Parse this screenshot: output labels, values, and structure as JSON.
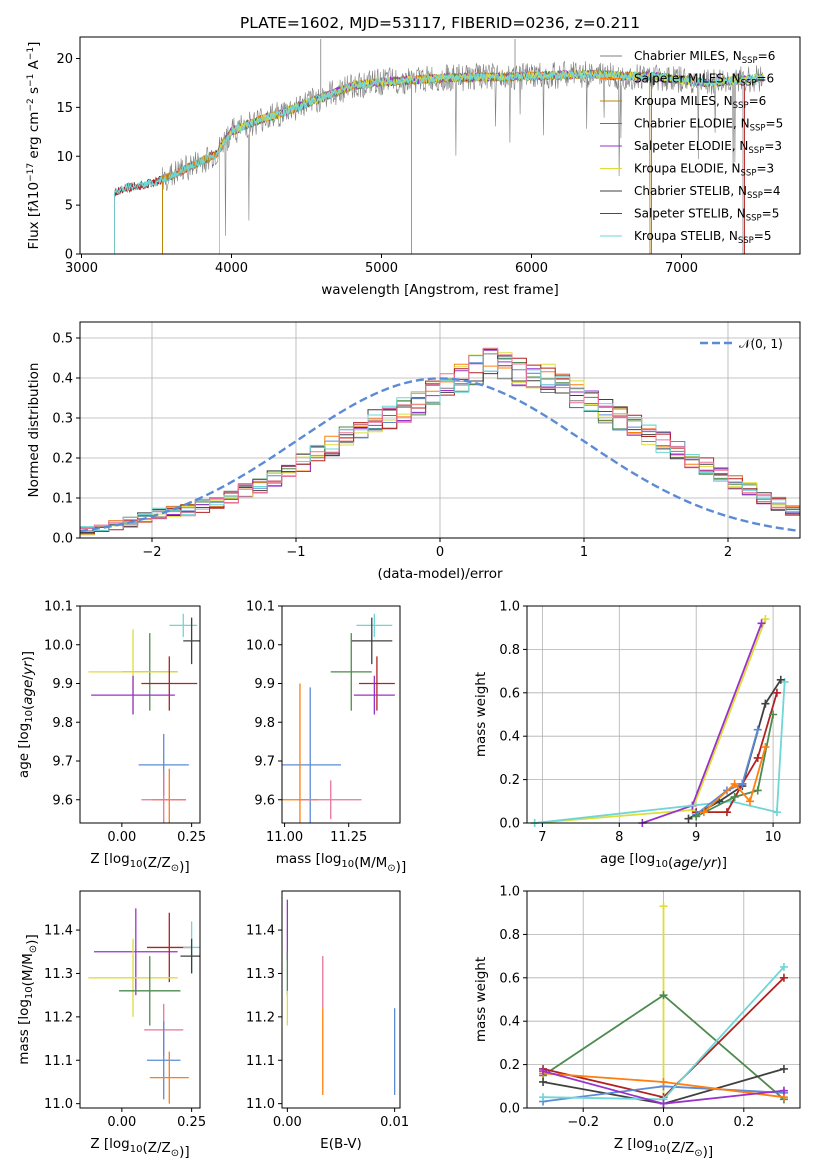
{
  "figure": {
    "title": "PLATE=1602, MJD=53117, FIBERID=0236, z=0.211",
    "colors": {
      "chabrier_miles": "#7f7f7f",
      "salpeter_miles": "#ff7f0e",
      "kroupa_miles": "#b8860b",
      "chabrier_elodie": "#4e8a4e",
      "salpeter_elodie": "#9932cc",
      "kroupa_elodie": "#dede3a",
      "chabrier_stelib": "#404040",
      "salpeter_stelib": "#b22222",
      "kroupa_stelib": "#6fd6d6",
      "normal": "#5b8bd6"
    }
  },
  "chart_data": [
    {
      "id": "spectrum",
      "type": "line",
      "title": "PLATE=1602, MJD=53117, FIBERID=0236, z=0.211",
      "xlabel": "wavelength [Angstrom, rest frame]",
      "ylabel_html": "Flux [f<tspan font-style='italic'>λ</tspan>10<tspan dy='-5' font-size='9'>−17</tspan><tspan dy='5'> erg cm</tspan><tspan dy='-5' font-size='9'>−2</tspan><tspan dy='5'> s</tspan><tspan dy='-5' font-size='9'>−1</tspan><tspan dy='5'> A</tspan><tspan dy='-5' font-size='9'>−1</tspan><tspan dy='5'>]</tspan>",
      "xlim": [
        2990,
        7790
      ],
      "ylim": [
        0,
        22.2
      ],
      "xticks": [
        3000,
        4000,
        5000,
        6000,
        7000
      ],
      "yticks": [
        0,
        5,
        10,
        15,
        20
      ],
      "legend_position": "upper right",
      "series": [
        {
          "name": "Chabrier MILES, N",
          "sub": "SSP",
          "n": "=6"
        },
        {
          "name": "Salpeter MILES, N",
          "sub": "SSP",
          "n": "=6"
        },
        {
          "name": "Kroupa MILES, N",
          "sub": "SSP",
          "n": "=6"
        },
        {
          "name": "Chabrier ELODIE, N",
          "sub": "SSP",
          "n": "=5"
        },
        {
          "name": "Salpeter ELODIE, N",
          "sub": "SSP",
          "n": "=3"
        },
        {
          "name": "Kroupa ELODIE, N",
          "sub": "SSP",
          "n": "=3"
        },
        {
          "name": "Chabrier STELIB, N",
          "sub": "SSP",
          "n": "=4"
        },
        {
          "name": "Salpeter STELIB, N",
          "sub": "SSP",
          "n": "=5"
        },
        {
          "name": "Kroupa STELIB, N",
          "sub": "SSP",
          "n": "=5"
        }
      ],
      "continuum_points": [
        [
          3210,
          0
        ],
        [
          3220,
          6.3
        ],
        [
          3300,
          6.8
        ],
        [
          3400,
          7.0
        ],
        [
          3500,
          7.4
        ],
        [
          3600,
          8.0
        ],
        [
          3700,
          8.8
        ],
        [
          3800,
          9.5
        ],
        [
          3900,
          10.2
        ],
        [
          3950,
          11.5
        ],
        [
          4000,
          12.5
        ],
        [
          4100,
          13.2
        ],
        [
          4200,
          13.8
        ],
        [
          4300,
          14.2
        ],
        [
          4400,
          14.8
        ],
        [
          4500,
          15.4
        ],
        [
          4600,
          16.0
        ],
        [
          4700,
          16.6
        ],
        [
          4800,
          17.2
        ],
        [
          4900,
          17.4
        ],
        [
          5000,
          17.6
        ],
        [
          5200,
          17.8
        ],
        [
          5400,
          18.0
        ],
        [
          5600,
          18.1
        ],
        [
          5800,
          18.1
        ],
        [
          6000,
          18.2
        ],
        [
          6200,
          18.3
        ],
        [
          6400,
          18.4
        ],
        [
          6600,
          18.2
        ],
        [
          6800,
          18.2
        ],
        [
          7000,
          17.8
        ],
        [
          7200,
          17.5
        ],
        [
          7400,
          17.8
        ],
        [
          7500,
          18.0
        ],
        [
          7550,
          18.0
        ]
      ],
      "model_starts": {
        "miles": 3540,
        "elodie": 3920,
        "stelib": 3220
      }
    },
    {
      "id": "residuals",
      "type": "histogram",
      "xlabel": "(data-model)/error",
      "ylabel": "Normed distribution",
      "xlim": [
        -2.5,
        2.5
      ],
      "ylim": [
        0,
        0.54
      ],
      "xticks": [
        -2,
        -1,
        0,
        1,
        2
      ],
      "xticklabels": [
        "−2",
        "−1",
        "0",
        "1",
        "2"
      ],
      "yticks": [
        0.0,
        0.1,
        0.2,
        0.3,
        0.4,
        0.5
      ],
      "yticklabels": [
        "0.0",
        "0.1",
        "0.2",
        "0.3",
        "0.4",
        "0.5"
      ],
      "grid": true,
      "legend_position": "upper right",
      "normal_label": "𝒩(0, 1)",
      "bin_width": 0.1,
      "bin_start": -2.5,
      "base_values": [
        0.018,
        0.024,
        0.032,
        0.04,
        0.05,
        0.06,
        0.065,
        0.07,
        0.08,
        0.09,
        0.1,
        0.12,
        0.13,
        0.15,
        0.17,
        0.19,
        0.21,
        0.23,
        0.25,
        0.27,
        0.29,
        0.3,
        0.32,
        0.34,
        0.36,
        0.38,
        0.4,
        0.42,
        0.45,
        0.43,
        0.42,
        0.41,
        0.4,
        0.38,
        0.36,
        0.34,
        0.32,
        0.3,
        0.28,
        0.26,
        0.24,
        0.22,
        0.2,
        0.18,
        0.16,
        0.14,
        0.12,
        0.1,
        0.085,
        0.07,
        0.06,
        0.05,
        0.04,
        0.033,
        0.027
      ]
    },
    {
      "id": "age-vs-Z",
      "type": "scatter",
      "xlabel": "Z [log<sub>10</sub>(Z/Z<sub>⊙</sub>)]",
      "ylabel": "age  [log<sub>10</sub>(age/yr)]",
      "xlim": [
        -0.15,
        0.28
      ],
      "ylim": [
        9.54,
        10.1
      ],
      "xticks": [
        0.0,
        0.25
      ],
      "xticklabels": [
        "0.00",
        "0.25"
      ],
      "yticks": [
        9.6,
        9.7,
        9.8,
        9.9,
        10.0,
        10.1
      ],
      "yticklabels": [
        "9.6",
        "9.7",
        "9.8",
        "9.9",
        "10.0",
        "10.1"
      ],
      "points": [
        {
          "c": "kroupa_stelib",
          "x": 0.22,
          "y": 10.05,
          "xe": 0.05,
          "ye": 0.03
        },
        {
          "c": "chabrier_stelib",
          "x": 0.25,
          "y": 10.01,
          "xe": 0.03,
          "ye": 0.06
        },
        {
          "c": "chabrier_elodie",
          "x": 0.1,
          "y": 9.93,
          "xe": 0.1,
          "ye": 0.1
        },
        {
          "c": "kroupa_elodie",
          "x": 0.04,
          "y": 9.93,
          "xe": 0.16,
          "ye": 0.11
        },
        {
          "c": "salpeter_stelib",
          "x": 0.17,
          "y": 9.9,
          "xe": 0.1,
          "ye": 0.07
        },
        {
          "c": "salpeter_elodie",
          "x": 0.04,
          "y": 9.87,
          "xe": 0.15,
          "ye": 0.05
        },
        {
          "c": "normal",
          "x": 0.15,
          "y": 9.69,
          "xe": 0.09,
          "ye": 0.08
        },
        {
          "c": "salpeter_miles",
          "x": 0.17,
          "y": 9.6,
          "xe": 0.06,
          "ye": 0.08
        },
        {
          "c": "pink",
          "x": 0.15,
          "y": 9.6,
          "xe": 0.08,
          "ye": 0.07
        }
      ]
    },
    {
      "id": "age-vs-mass",
      "type": "scatter",
      "xlabel": "mass [log<sub>10</sub>(M/M<sub>⊙</sub>)]",
      "xlim": [
        10.99,
        11.45
      ],
      "ylim": [
        9.54,
        10.1
      ],
      "xticks": [
        11.0,
        11.25
      ],
      "xticklabels": [
        "11.00",
        "11.25"
      ],
      "yticks": [
        9.6,
        9.7,
        9.8,
        9.9,
        10.0,
        10.1
      ],
      "yticklabels": [
        "9.6",
        "9.7",
        "9.8",
        "9.9",
        "10.0",
        "10.1"
      ],
      "points": [
        {
          "c": "kroupa_stelib",
          "x": 11.35,
          "y": 10.05,
          "xe": 0.07,
          "ye": 0.03
        },
        {
          "c": "chabrier_stelib",
          "x": 11.34,
          "y": 10.01,
          "xe": 0.08,
          "ye": 0.06
        },
        {
          "c": "chabrier_elodie",
          "x": 11.26,
          "y": 9.93,
          "xe": 0.08,
          "ye": 0.1
        },
        {
          "c": "salpeter_stelib",
          "x": 11.36,
          "y": 9.9,
          "xe": 0.07,
          "ye": 0.07
        },
        {
          "c": "salpeter_elodie",
          "x": 11.35,
          "y": 9.87,
          "xe": 0.08,
          "ye": 0.05
        },
        {
          "c": "normal",
          "x": 11.1,
          "y": 9.69,
          "xe": 0.12,
          "ye": 0.2
        },
        {
          "c": "salpeter_miles",
          "x": 11.06,
          "y": 9.6,
          "xe": 0.07,
          "ye": 0.3
        },
        {
          "c": "pink",
          "x": 11.18,
          "y": 9.6,
          "xe": 0.12,
          "ye": 0.05
        }
      ]
    },
    {
      "id": "mass-weight-vs-age",
      "type": "line",
      "xlabel": "age  [log<sub>10</sub>(age/yr)]",
      "ylabel": "mass weight",
      "xlim": [
        6.8,
        10.35
      ],
      "ylim": [
        0,
        1.0
      ],
      "xticks": [
        7,
        8,
        9,
        10
      ],
      "yticks": [
        0.0,
        0.2,
        0.4,
        0.6,
        0.8,
        1.0
      ],
      "yticklabels": [
        "0.0",
        "0.2",
        "0.4",
        "0.6",
        "0.8",
        "1.0"
      ],
      "grid": true,
      "series": [
        {
          "c": "kroupa_elodie",
          "x": [
            6.9,
            8.95,
            9.9
          ],
          "y": [
            0.0,
            0.06,
            0.94
          ]
        },
        {
          "c": "salpeter_elodie",
          "x": [
            8.3,
            8.95,
            9.85
          ],
          "y": [
            0.0,
            0.08,
            0.92
          ]
        },
        {
          "c": "kroupa_stelib",
          "x": [
            6.9,
            9.45,
            10.05,
            10.15
          ],
          "y": [
            0.0,
            0.1,
            0.05,
            0.65
          ]
        },
        {
          "c": "chabrier_stelib",
          "x": [
            8.9,
            9.3,
            9.6,
            9.9,
            10.1
          ],
          "y": [
            0.02,
            0.1,
            0.17,
            0.55,
            0.66
          ]
        },
        {
          "c": "salpeter_stelib",
          "x": [
            9.0,
            9.4,
            9.6,
            9.8,
            10.05
          ],
          "y": [
            0.05,
            0.05,
            0.18,
            0.3,
            0.6
          ]
        },
        {
          "c": "normal",
          "x": [
            9.0,
            9.4,
            9.6,
            9.8
          ],
          "y": [
            0.04,
            0.15,
            0.18,
            0.43
          ]
        },
        {
          "c": "chabrier_elodie",
          "x": [
            9.0,
            9.5,
            9.8,
            10.0
          ],
          "y": [
            0.03,
            0.12,
            0.15,
            0.5
          ]
        },
        {
          "c": "salpeter_miles",
          "x": [
            9.1,
            9.5,
            9.7,
            9.9
          ],
          "y": [
            0.05,
            0.18,
            0.1,
            0.35
          ]
        }
      ]
    },
    {
      "id": "mass-vs-Z",
      "type": "scatter",
      "xlabel": "Z [log<sub>10</sub>(Z/Z<sub>⊙</sub>)]",
      "ylabel": "mass [log<sub>10</sub>(M/M<sub>⊙</sub>)]",
      "xlim": [
        -0.15,
        0.28
      ],
      "ylim": [
        10.99,
        11.49
      ],
      "xticks": [
        0.0,
        0.25
      ],
      "xticklabels": [
        "0.00",
        "0.25"
      ],
      "yticks": [
        11.0,
        11.1,
        11.2,
        11.3,
        11.4
      ],
      "yticklabels": [
        "11.0",
        "11.1",
        "11.2",
        "11.3",
        "11.4"
      ],
      "points": [
        {
          "c": "salpeter_elodie",
          "x": 0.05,
          "y": 11.35,
          "xe": 0.15,
          "ye": 0.1
        },
        {
          "c": "salpeter_stelib",
          "x": 0.17,
          "y": 11.36,
          "xe": 0.08,
          "ye": 0.08
        },
        {
          "c": "kroupa_stelib",
          "x": 0.25,
          "y": 11.36,
          "xe": 0.03,
          "ye": 0.06
        },
        {
          "c": "chabrier_stelib",
          "x": 0.25,
          "y": 11.34,
          "xe": 0.04,
          "ye": 0.04
        },
        {
          "c": "kroupa_elodie",
          "x": 0.04,
          "y": 11.29,
          "xe": 0.16,
          "ye": 0.09
        },
        {
          "c": "chabrier_elodie",
          "x": 0.1,
          "y": 11.26,
          "xe": 0.11,
          "ye": 0.08
        },
        {
          "c": "pink",
          "x": 0.15,
          "y": 11.17,
          "xe": 0.07,
          "ye": 0.06
        },
        {
          "c": "normal",
          "x": 0.15,
          "y": 11.1,
          "xe": 0.06,
          "ye": 0.09
        },
        {
          "c": "salpeter_miles",
          "x": 0.17,
          "y": 11.06,
          "xe": 0.07,
          "ye": 0.06
        }
      ]
    },
    {
      "id": "mass-vs-EBV",
      "type": "scatter",
      "xlabel": "E(B-V)",
      "xlim": [
        -0.0005,
        0.0105
      ],
      "ylim": [
        10.99,
        11.49
      ],
      "xticks": [
        0.0,
        0.01
      ],
      "xticklabels": [
        "0.00",
        "0.01"
      ],
      "yticks": [
        11.0,
        11.1,
        11.2,
        11.3,
        11.4
      ],
      "yticklabels": [
        "11.0",
        "11.1",
        "11.2",
        "11.3",
        "11.4"
      ],
      "points": [
        {
          "c": "salpeter_elodie",
          "x": 0.0,
          "y": 11.4,
          "xe": 0,
          "ye": 0.07
        },
        {
          "c": "chabrier_elodie",
          "x": 0.0,
          "y": 11.3,
          "xe": 0,
          "ye": 0.05
        },
        {
          "c": "kroupa_elodie",
          "x": 0.0,
          "y": 11.22,
          "xe": 0,
          "ye": 0.04
        },
        {
          "c": "salpeter_miles",
          "x": 0.0033,
          "y": 11.12,
          "xe": 0,
          "ye": 0.1
        },
        {
          "c": "pink",
          "x": 0.0033,
          "y": 11.28,
          "xe": 0,
          "ye": 0.06
        },
        {
          "c": "normal",
          "x": 0.01,
          "y": 11.12,
          "xe": 0,
          "ye": 0.1
        }
      ]
    },
    {
      "id": "mass-weight-vs-Z",
      "type": "line",
      "xlabel": "Z [log<sub>10</sub>(Z/Z<sub>⊙</sub>)]",
      "ylabel": "mass weight",
      "xlim": [
        -0.34,
        0.34
      ],
      "ylim": [
        0,
        1.0
      ],
      "xticks": [
        -0.2,
        0.0,
        0.2
      ],
      "xticklabels": [
        "−0.2",
        "0.0",
        "0.2"
      ],
      "yticks": [
        0.0,
        0.2,
        0.4,
        0.6,
        0.8,
        1.0
      ],
      "yticklabels": [
        "0.0",
        "0.2",
        "0.4",
        "0.6",
        "0.8",
        "1.0"
      ],
      "grid": true,
      "series": [
        {
          "c": "kroupa_elodie",
          "x": [
            0.0,
            0.0
          ],
          "y": [
            0.05,
            0.93
          ]
        },
        {
          "c": "chabrier_elodie",
          "x": [
            -0.3,
            0.0,
            0.3
          ],
          "y": [
            0.15,
            0.52,
            0.04
          ]
        },
        {
          "c": "salpeter_stelib",
          "x": [
            -0.3,
            0.0,
            0.3
          ],
          "y": [
            0.18,
            0.05,
            0.6
          ]
        },
        {
          "c": "chabrier_stelib",
          "x": [
            -0.3,
            0.0,
            0.3
          ],
          "y": [
            0.12,
            0.02,
            0.18
          ]
        },
        {
          "c": "normal",
          "x": [
            -0.3,
            0.0,
            0.3
          ],
          "y": [
            0.03,
            0.1,
            0.07
          ]
        },
        {
          "c": "kroupa_stelib",
          "x": [
            -0.3,
            0.0,
            0.3
          ],
          "y": [
            0.05,
            0.04,
            0.65
          ]
        },
        {
          "c": "salpeter_miles",
          "x": [
            -0.3,
            0.0,
            0.3
          ],
          "y": [
            0.16,
            0.12,
            0.05
          ]
        },
        {
          "c": "salpeter_elodie",
          "x": [
            -0.3,
            0.0,
            0.3
          ],
          "y": [
            0.17,
            0.02,
            0.08
          ]
        }
      ]
    }
  ]
}
